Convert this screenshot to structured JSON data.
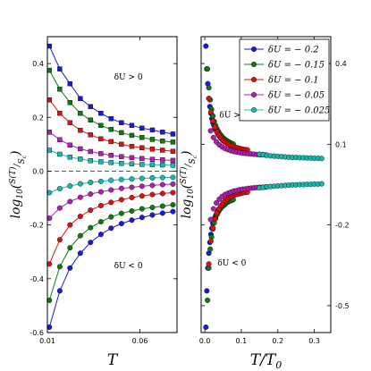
{
  "chart_data": [
    {
      "type": "line",
      "panel": "left",
      "xlabel": "T",
      "ylabel_base": "log",
      "ylabel_sub": "10",
      "ylabel_num": "S(T)",
      "ylabel_den": "S",
      "ylabel_den_sub": "c",
      "xlim": [
        0.01,
        0.08
      ],
      "ylim": [
        -0.6,
        0.5
      ],
      "x_ticks": [
        0.01,
        0.06
      ],
      "x_tick_labels": [
        "0.01",
        "0.06"
      ],
      "y_ticks": [
        -0.6,
        -0.4,
        -0.2,
        0.0,
        0.2,
        0.4
      ],
      "y_tick_labels": [
        "-0.6",
        "-0.4",
        "-0.2",
        "0.0",
        "0.2",
        "0.4"
      ],
      "reference_line": {
        "y": 0.0,
        "color": "#e8191d",
        "style": "dashed"
      },
      "annotations": [
        {
          "text": "δU > 0",
          "x": 0.046,
          "y": 0.34
        },
        {
          "text": "δU < 0",
          "x": 0.046,
          "y": -0.36
        }
      ],
      "x": [
        0.0111,
        0.0167,
        0.0222,
        0.0278,
        0.0333,
        0.0389,
        0.0444,
        0.05,
        0.0556,
        0.0611,
        0.0667,
        0.0722,
        0.0778
      ],
      "series": [
        {
          "color": "#1a1adb",
          "marker": "square",
          "values": [
            0.465,
            0.38,
            0.325,
            0.27,
            0.24,
            0.215,
            0.195,
            0.18,
            0.17,
            0.16,
            0.153,
            0.145,
            0.138
          ]
        },
        {
          "color": "#0e7a12",
          "marker": "square",
          "values": [
            0.375,
            0.305,
            0.255,
            0.215,
            0.19,
            0.17,
            0.155,
            0.143,
            0.133,
            0.125,
            0.118,
            0.112,
            0.108
          ]
        },
        {
          "color": "#e01010",
          "marker": "square",
          "values": [
            0.265,
            0.215,
            0.18,
            0.152,
            0.135,
            0.12,
            0.11,
            0.1,
            0.092,
            0.087,
            0.082,
            0.078,
            0.074
          ]
        },
        {
          "color": "#b020b0",
          "marker": "square",
          "values": [
            0.145,
            0.117,
            0.097,
            0.083,
            0.073,
            0.065,
            0.059,
            0.054,
            0.05,
            0.047,
            0.044,
            0.042,
            0.04
          ]
        },
        {
          "color": "#18b8b0",
          "marker": "square",
          "values": [
            0.078,
            0.063,
            0.052,
            0.045,
            0.039,
            0.035,
            0.032,
            0.029,
            0.027,
            0.025,
            0.024,
            0.023,
            0.022
          ]
        },
        {
          "color": "#18b8b0",
          "marker": "circle",
          "values": [
            -0.08,
            -0.065,
            -0.055,
            -0.047,
            -0.042,
            -0.038,
            -0.034,
            -0.031,
            -0.029,
            -0.027,
            -0.025,
            -0.024,
            -0.023
          ]
        },
        {
          "color": "#b020b0",
          "marker": "circle",
          "values": [
            -0.175,
            -0.137,
            -0.113,
            -0.097,
            -0.085,
            -0.077,
            -0.07,
            -0.064,
            -0.06,
            -0.056,
            -0.053,
            -0.05,
            -0.048
          ]
        },
        {
          "color": "#e01010",
          "marker": "circle",
          "values": [
            -0.345,
            -0.255,
            -0.2,
            -0.168,
            -0.145,
            -0.128,
            -0.116,
            -0.106,
            -0.098,
            -0.092,
            -0.087,
            -0.083,
            -0.08
          ]
        },
        {
          "color": "#0e7a12",
          "marker": "circle",
          "values": [
            -0.48,
            -0.355,
            -0.285,
            -0.24,
            -0.21,
            -0.188,
            -0.17,
            -0.157,
            -0.148,
            -0.14,
            -0.135,
            -0.13,
            -0.125
          ]
        },
        {
          "color": "#1a1adb",
          "marker": "circle",
          "values": [
            -0.58,
            -0.445,
            -0.36,
            -0.305,
            -0.265,
            -0.235,
            -0.212,
            -0.195,
            -0.182,
            -0.172,
            -0.163,
            -0.156,
            -0.15
          ]
        }
      ]
    },
    {
      "type": "scatter",
      "panel": "right",
      "xlabel_main": "T/T",
      "xlabel_sub": "0",
      "ylabel_base": "log",
      "ylabel_sub": "10",
      "ylabel_num": "S(T)",
      "ylabel_den": "S",
      "ylabel_den_sub": "c",
      "xlim": [
        -0.01,
        0.345
      ],
      "ylim": [
        -0.6,
        0.5
      ],
      "x_ticks": [
        0.0,
        0.1,
        0.2,
        0.3
      ],
      "x_tick_labels": [
        "0.0",
        "0.1",
        "0.2",
        "0.3"
      ],
      "y_ticks": [
        -0.5,
        -0.2,
        0.1,
        0.4
      ],
      "y_tick_labels": [
        "-0.5",
        "-0.2",
        "0.1",
        "0.4"
      ],
      "annotations": [
        {
          "text": "δU > 0",
          "x": 0.04,
          "y": 0.2
        },
        {
          "text": "δU < 0",
          "x": 0.035,
          "y": -0.35
        }
      ],
      "legend_position": "top-right",
      "legend": [
        {
          "label": "δU = − 0.2",
          "color": "#1a1adb"
        },
        {
          "label": "δU = − 0.15",
          "color": "#0e7a12"
        },
        {
          "label": "δU = − 0.1",
          "color": "#e01010"
        },
        {
          "label": "δU = − 0.05",
          "color": "#b020b0"
        },
        {
          "label": "δU = − 0.025",
          "color": "#18b8b0"
        }
      ],
      "series": [
        {
          "color": "#1a1adb",
          "x": [
            0.003,
            0.0056,
            0.0083,
            0.0111,
            0.0139,
            0.0167,
            0.0194,
            0.0222,
            0.025,
            0.0278,
            0.0306,
            0.0333,
            0.0361,
            0.0389,
            0.0417,
            0.0444,
            0.0472,
            0.05,
            0.0528,
            0.0556
          ],
          "pos": [
            0.465,
            0.38,
            0.325,
            0.27,
            0.24,
            0.215,
            0.195,
            0.18,
            0.17,
            0.16,
            0.153,
            0.145,
            0.138,
            0.132,
            0.127,
            0.122,
            0.118,
            0.114,
            0.111,
            0.108
          ],
          "neg": [
            -0.58,
            -0.445,
            -0.36,
            -0.305,
            -0.265,
            -0.235,
            -0.212,
            -0.195,
            -0.182,
            -0.172,
            -0.163,
            -0.156,
            -0.15,
            -0.145,
            -0.14,
            -0.136,
            -0.132,
            -0.129,
            -0.126,
            -0.123
          ]
        },
        {
          "color": "#0e7a12",
          "x": [
            0.0074,
            0.0111,
            0.0148,
            0.0185,
            0.0222,
            0.0259,
            0.0296,
            0.0333,
            0.037,
            0.0407,
            0.0444,
            0.0481,
            0.0519,
            0.0556,
            0.0593,
            0.063,
            0.0667,
            0.0704,
            0.0741,
            0.0778
          ],
          "pos": [
            0.38,
            0.31,
            0.265,
            0.23,
            0.205,
            0.185,
            0.17,
            0.158,
            0.148,
            0.14,
            0.133,
            0.127,
            0.122,
            0.118,
            0.114,
            0.111,
            0.108,
            0.105,
            0.103,
            0.101
          ],
          "neg": [
            -0.48,
            -0.36,
            -0.29,
            -0.245,
            -0.215,
            -0.192,
            -0.175,
            -0.162,
            -0.152,
            -0.144,
            -0.137,
            -0.131,
            -0.126,
            -0.122,
            -0.118,
            -0.115,
            -0.112,
            -0.11,
            -0.108,
            -0.106
          ]
        },
        {
          "color": "#e01010",
          "x": [
            0.011,
            0.0167,
            0.0222,
            0.0278,
            0.0333,
            0.0389,
            0.0444,
            0.05,
            0.0556,
            0.0611,
            0.0667,
            0.0722,
            0.0778,
            0.0833,
            0.0889,
            0.0944,
            0.1,
            0.1056,
            0.1111,
            0.1167
          ],
          "pos": [
            0.27,
            0.22,
            0.187,
            0.163,
            0.146,
            0.133,
            0.123,
            0.115,
            0.108,
            0.103,
            0.099,
            0.095,
            0.092,
            0.089,
            0.087,
            0.085,
            0.083,
            0.081,
            0.08,
            0.079
          ],
          "neg": [
            -0.345,
            -0.26,
            -0.21,
            -0.178,
            -0.156,
            -0.14,
            -0.128,
            -0.118,
            -0.11,
            -0.104,
            -0.099,
            -0.095,
            -0.091,
            -0.088,
            -0.086,
            -0.084,
            -0.082,
            -0.08,
            -0.079,
            -0.078
          ]
        },
        {
          "color": "#b020b0",
          "x": [
            0.016,
            0.0238,
            0.0317,
            0.0397,
            0.0476,
            0.0556,
            0.0635,
            0.0714,
            0.0794,
            0.0873,
            0.0952,
            0.1032,
            0.1111,
            0.119,
            0.127,
            0.1349,
            0.1429,
            0.1508,
            0.1587,
            0.1667
          ],
          "pos": [
            0.15,
            0.125,
            0.109,
            0.098,
            0.09,
            0.084,
            0.08,
            0.076,
            0.073,
            0.071,
            0.069,
            0.067,
            0.066,
            0.065,
            0.064,
            0.063,
            0.062,
            0.061,
            0.061,
            0.06
          ],
          "neg": [
            -0.18,
            -0.14,
            -0.118,
            -0.104,
            -0.094,
            -0.087,
            -0.082,
            -0.078,
            -0.074,
            -0.072,
            -0.069,
            -0.067,
            -0.066,
            -0.064,
            -0.063,
            -0.062,
            -0.061,
            -0.06,
            -0.06,
            -0.059
          ]
        },
        {
          "color": "#18b8b0",
          "x": [
            0.15,
            0.16,
            0.17,
            0.18,
            0.19,
            0.2,
            0.21,
            0.22,
            0.23,
            0.24,
            0.25,
            0.26,
            0.27,
            0.28,
            0.29,
            0.3,
            0.31,
            0.32
          ],
          "pos": [
            0.063,
            0.061,
            0.059,
            0.057,
            0.056,
            0.055,
            0.054,
            0.053,
            0.052,
            0.051,
            0.051,
            0.05,
            0.05,
            0.049,
            0.049,
            0.048,
            0.048,
            0.047
          ],
          "neg": [
            -0.062,
            -0.06,
            -0.058,
            -0.057,
            -0.056,
            -0.055,
            -0.054,
            -0.053,
            -0.052,
            -0.051,
            -0.051,
            -0.05,
            -0.05,
            -0.049,
            -0.049,
            -0.048,
            -0.048,
            -0.047
          ]
        }
      ]
    }
  ]
}
